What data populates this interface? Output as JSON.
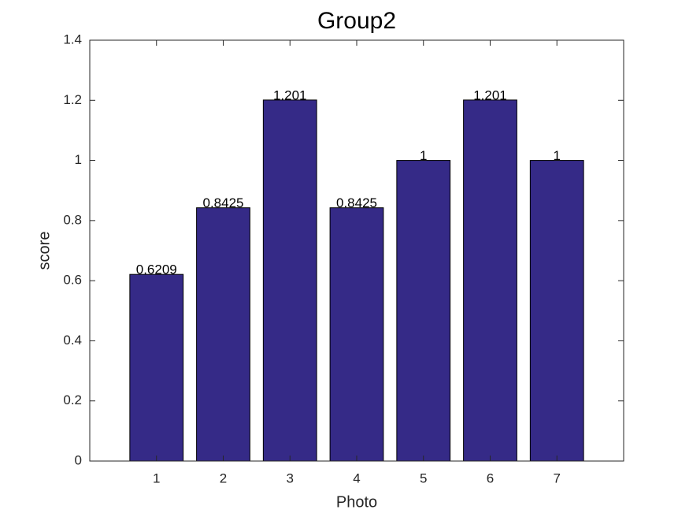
{
  "chart_data": {
    "type": "bar",
    "title": "Group2",
    "x_label": "Photo",
    "y_label": "score",
    "x": [
      1,
      2,
      3,
      4,
      5,
      6,
      7
    ],
    "values": [
      0.6209,
      0.8425,
      1.201,
      0.8425,
      1,
      1.201,
      1
    ],
    "color": "#352a87",
    "xlim": [
      0,
      8
    ],
    "xticks": [
      1,
      2,
      3,
      4,
      5,
      6,
      7
    ],
    "ylim": [
      0,
      1.4
    ],
    "yticks": [
      0,
      0.2,
      0.4,
      0.6,
      0.8,
      1,
      1.2,
      1.4
    ],
    "grid": false
  }
}
